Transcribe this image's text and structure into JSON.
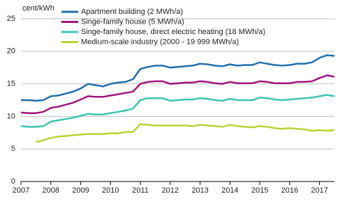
{
  "chart_data": {
    "type": "line",
    "y_label": "cent/kWh",
    "x": [
      2007,
      2007.25,
      2007.5,
      2007.75,
      2008,
      2008.25,
      2008.5,
      2008.75,
      2009,
      2009.25,
      2009.5,
      2009.75,
      2010,
      2010.25,
      2010.5,
      2010.75,
      2011,
      2011.25,
      2011.5,
      2011.75,
      2012,
      2012.25,
      2012.5,
      2012.75,
      2013,
      2013.25,
      2013.5,
      2013.75,
      2014,
      2014.25,
      2014.5,
      2014.75,
      2015,
      2015.25,
      2015.5,
      2015.75,
      2016,
      2016.25,
      2016.5,
      2016.75,
      2017,
      2017.25,
      2017.5
    ],
    "series": [
      {
        "name": "Apartment building (2 MWh/a)",
        "color": "#1f6fad",
        "values": [
          12.5,
          12.5,
          12.4,
          12.5,
          13.1,
          13.2,
          13.5,
          13.8,
          14.3,
          15.0,
          14.8,
          14.6,
          15.0,
          15.2,
          15.3,
          15.7,
          17.3,
          17.6,
          17.8,
          17.8,
          17.5,
          17.6,
          17.7,
          17.8,
          18.1,
          18.0,
          17.8,
          17.7,
          18.0,
          17.8,
          17.9,
          17.9,
          18.3,
          18.1,
          17.9,
          17.8,
          17.9,
          18.1,
          18.1,
          18.3,
          19.0,
          19.4,
          19.3
        ]
      },
      {
        "name": "Singe-family house (5 MWh/a)",
        "color": "#a0147e",
        "values": [
          10.6,
          10.5,
          10.5,
          10.7,
          11.3,
          11.5,
          11.8,
          12.1,
          12.6,
          13.1,
          13.0,
          13.0,
          13.2,
          13.4,
          13.6,
          13.8,
          15.0,
          15.3,
          15.4,
          15.4,
          15.0,
          15.1,
          15.2,
          15.2,
          15.4,
          15.3,
          15.1,
          15.0,
          15.3,
          15.1,
          15.1,
          15.1,
          15.4,
          15.3,
          15.1,
          15.1,
          15.1,
          15.3,
          15.3,
          15.4,
          15.9,
          16.3,
          16.1
        ]
      },
      {
        "name": "Singe-family house, direct electric heating (18 MWh/a)",
        "color": "#3cc4b4",
        "values": [
          8.5,
          8.4,
          8.4,
          8.5,
          9.2,
          9.4,
          9.6,
          9.8,
          10.1,
          10.4,
          10.3,
          10.3,
          10.5,
          10.7,
          10.9,
          11.2,
          12.5,
          12.8,
          12.8,
          12.8,
          12.4,
          12.5,
          12.6,
          12.6,
          12.8,
          12.7,
          12.5,
          12.4,
          12.7,
          12.5,
          12.5,
          12.5,
          12.9,
          12.8,
          12.6,
          12.5,
          12.6,
          12.7,
          12.8,
          12.9,
          13.1,
          13.3,
          13.1
        ]
      },
      {
        "name": "Medium-scale industry (2000 - 19 999 MWh/a)",
        "color": "#b7d334",
        "values": [
          null,
          null,
          6.1,
          6.3,
          6.7,
          6.9,
          7.0,
          7.1,
          7.2,
          7.3,
          7.3,
          7.3,
          7.4,
          7.4,
          7.6,
          7.6,
          8.8,
          8.7,
          8.6,
          8.6,
          8.6,
          8.6,
          8.6,
          8.5,
          8.7,
          8.6,
          8.5,
          8.4,
          8.7,
          8.5,
          8.4,
          8.3,
          8.5,
          8.4,
          8.2,
          8.1,
          8.2,
          8.1,
          8.0,
          7.8,
          7.9,
          7.8,
          7.9
        ]
      }
    ],
    "xlim": [
      2007,
      2017.5
    ],
    "xticks": [
      2007,
      2008,
      2009,
      2010,
      2011,
      2012,
      2013,
      2014,
      2015,
      2016,
      2017
    ],
    "ylim": [
      0,
      25
    ],
    "yticks": [
      0,
      5,
      10,
      15,
      20,
      25
    ],
    "grid": true,
    "legend": "upper left"
  }
}
